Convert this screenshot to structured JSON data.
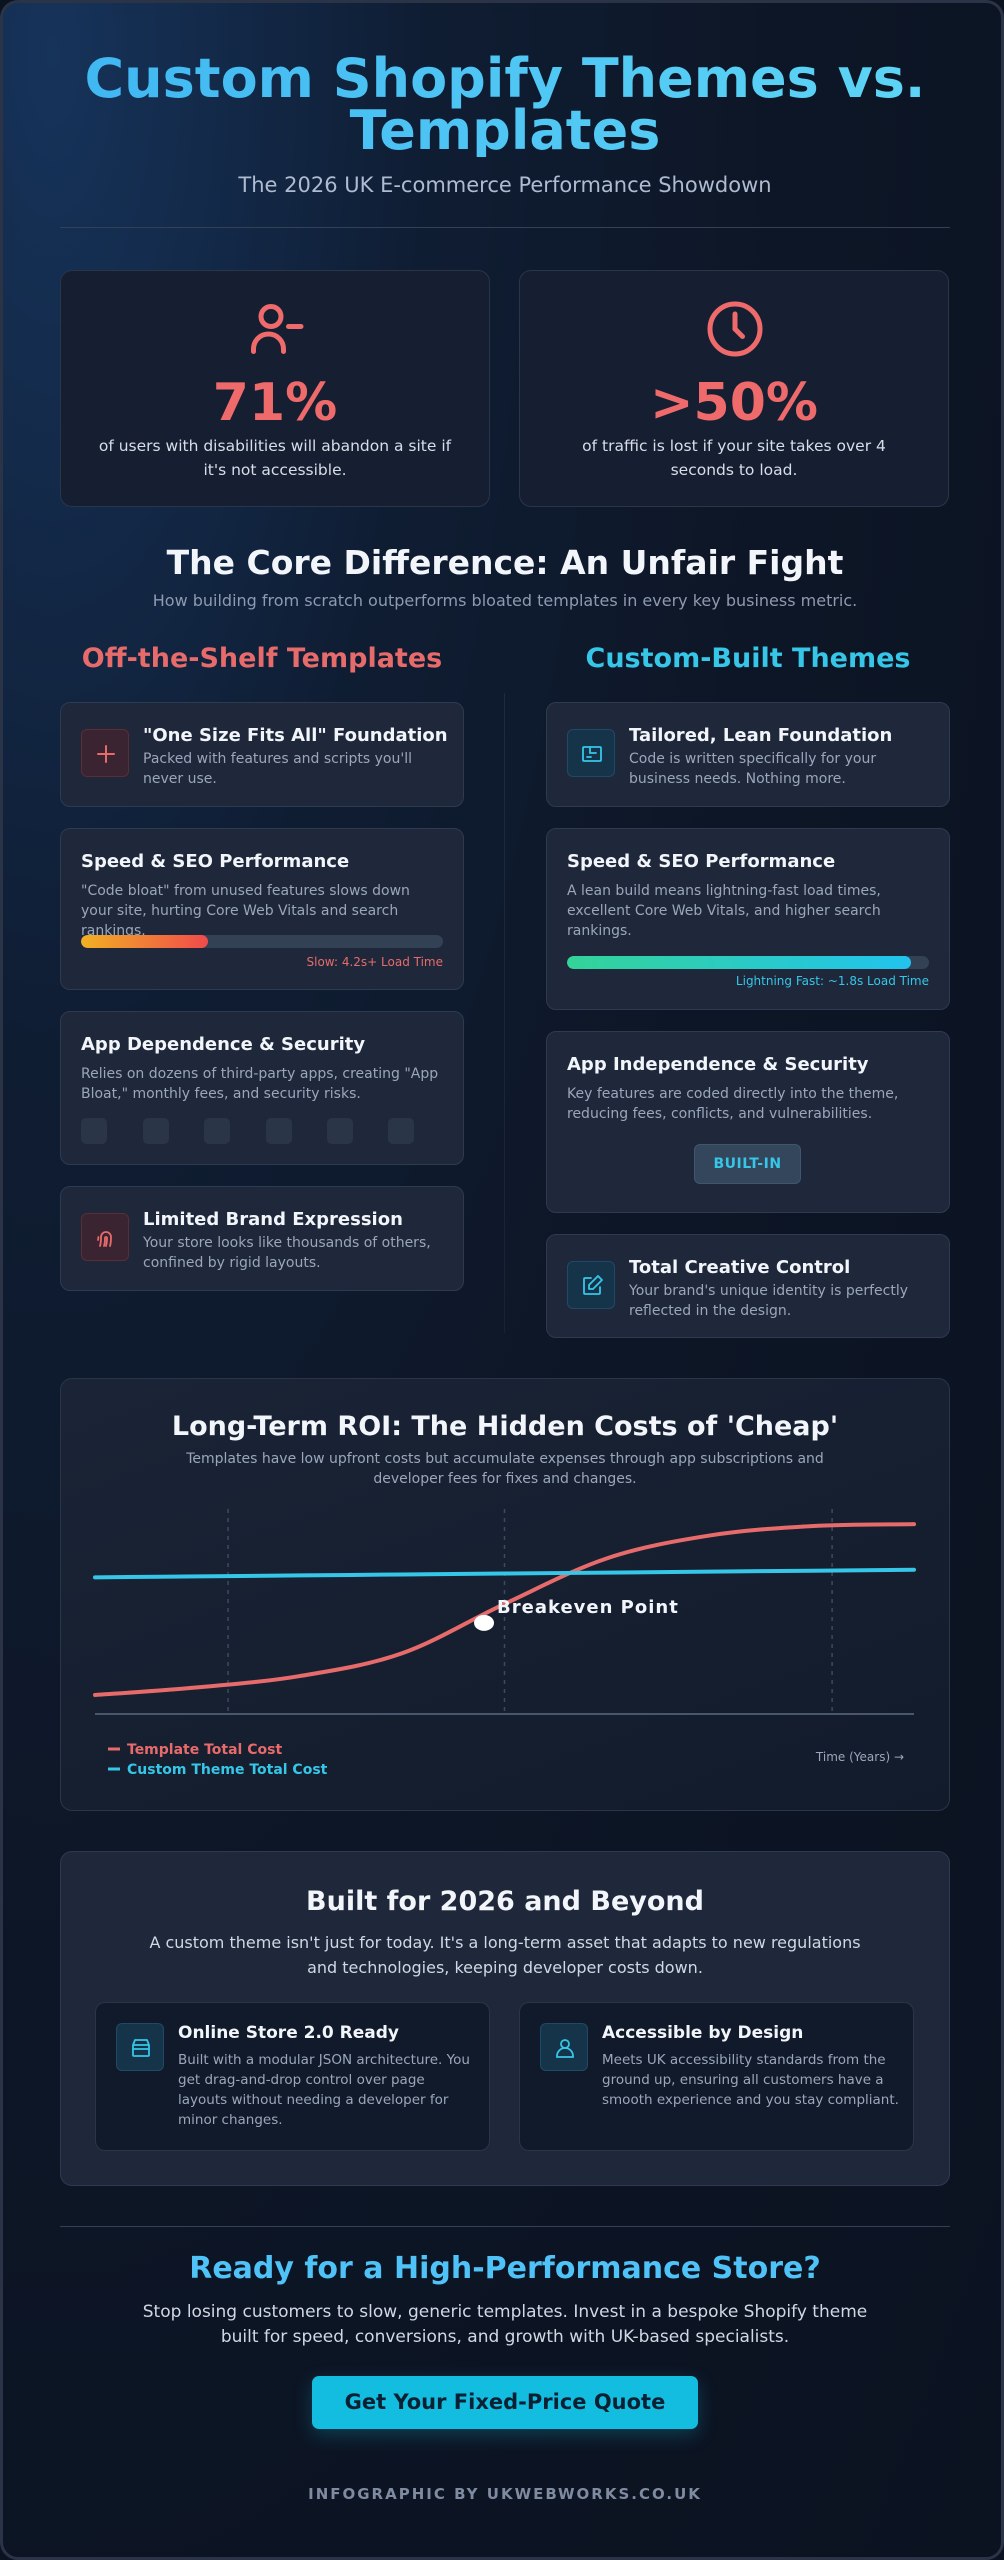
{
  "header": {
    "title_line1": "Custom Shopify Themes vs.",
    "title_line2": "Templates",
    "subtitle": "The 2026 UK E-commerce Performance Showdown"
  },
  "stats": [
    {
      "icon": "user-minus-icon",
      "value": "71%",
      "text": "of users with disabilities will abandon a site if it's not accessible."
    },
    {
      "icon": "clock-icon",
      "value": ">50%",
      "text": "of traffic is lost if your site takes over 4 seconds to load."
    }
  ],
  "core": {
    "title": "The Core Difference: An Unfair Fight",
    "subtitle": "How building from scratch outperforms bloated templates in every key business metric."
  },
  "templates": {
    "heading": "Off-the-Shelf Templates",
    "color": "#e86b6b",
    "cards": [
      {
        "icon": "plus-icon",
        "title": "\"One Size Fits All\" Foundation",
        "desc": "Packed with features and scripts you'll never use."
      },
      {
        "title": "Speed & SEO Performance",
        "desc": "\"Code bloat\" from unused features slows down your site, hurting Core Web Vitals and search rankings.",
        "bar_fraction": 0.35,
        "bar_label": "Slow: 4.2s+ Load Time"
      },
      {
        "title": "App Dependence & Security",
        "desc": "Relies on dozens of third-party apps, creating \"App Bloat,\" monthly fees, and security risks."
      },
      {
        "icon": "fingerprint-icon",
        "title": "Limited Brand Expression",
        "desc": "Your store looks like thousands of others, confined by rigid layouts."
      }
    ]
  },
  "custom": {
    "heading": "Custom-Built Themes",
    "color": "#36c6e8",
    "cards": [
      {
        "icon": "foundation-icon",
        "title": "Tailored, Lean Foundation",
        "desc": "Code is written specifically for your business needs. Nothing more."
      },
      {
        "title": "Speed & SEO Performance",
        "desc": "A lean build means lightning-fast load times, excellent Core Web Vitals, and higher search rankings.",
        "bar_fraction": 0.95,
        "bar_label": "Lightning Fast: ~1.8s Load Time"
      },
      {
        "title": "App Independence & Security",
        "desc": "Key features are coded directly into the theme, reducing fees, conflicts, and vulnerabilities.",
        "badge": "BUILT-IN"
      },
      {
        "icon": "edit-icon",
        "title": "Total Creative Control",
        "desc": "Your brand's unique identity is perfectly reflected in the design."
      }
    ]
  },
  "roi": {
    "title": "Long-Term ROI: The Hidden Costs of 'Cheap'",
    "subtitle": "Templates have low upfront costs but accumulate expenses through app subscriptions and developer fees for fixes and changes.",
    "annotation": "Breakeven Point",
    "x_axis_label": "Time (Years) →"
  },
  "chart_data": {
    "type": "line",
    "title": "Long-Term ROI: The Hidden Costs of 'Cheap'",
    "xlabel": "Time (Years) →",
    "ylabel": "",
    "x": [
      0,
      1,
      2,
      3,
      4,
      5,
      6,
      7,
      8
    ],
    "series": [
      {
        "name": "Template Total Cost",
        "color": "#e86b6b",
        "values": [
          10,
          14,
          20,
          32,
          58,
          82,
          94,
          99,
          100
        ]
      },
      {
        "name": "Custom Theme Total Cost",
        "color": "#36c6e8",
        "values": [
          72,
          72.5,
          73,
          73.5,
          74,
          74.5,
          75,
          75.5,
          76
        ]
      }
    ],
    "ylim": [
      0,
      108
    ],
    "grid": "vertical-dashed",
    "legend": "bottom-left",
    "annotations": [
      {
        "text": "Breakeven Point",
        "x": 3.8,
        "y": 48
      }
    ]
  },
  "future": {
    "title": "Built for 2026 and Beyond",
    "desc": "A custom theme isn't just for today. It's a long-term asset that adapts to new regulations and technologies, keeping developer costs down.",
    "cards": [
      {
        "icon": "store-icon",
        "title": "Online Store 2.0 Ready",
        "desc": "Built with a modular JSON architecture. You get drag-and-drop control over page layouts without needing a developer for minor changes."
      },
      {
        "icon": "user-icon",
        "title": "Accessible by Design",
        "desc": "Meets UK accessibility standards from the ground up, ensuring all customers have a smooth experience and you stay compliant."
      }
    ]
  },
  "cta": {
    "title": "Ready for a High-Performance Store?",
    "desc": "Stop losing customers to slow, generic templates. Invest in a bespoke Shopify theme built for speed, conversions, and growth with UK-based specialists.",
    "button": "Get Your Fixed-Price Quote"
  },
  "footer": "INFOGRAPHIC BY UKWEBWORKS.CO.UK"
}
